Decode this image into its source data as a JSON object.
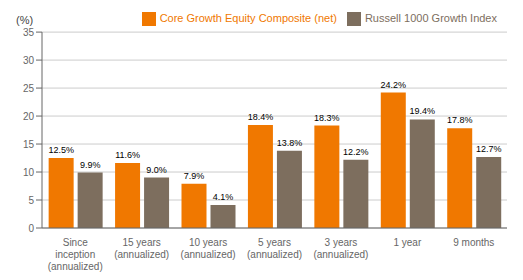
{
  "chart_data": {
    "type": "bar",
    "ylabel": "(%)",
    "categories": [
      "Since\ninception\n(annualized)",
      "15 years\n(annualized)",
      "10 years\n(annualized)",
      "5 years\n(annualized)",
      "3 years\n(annualized)",
      "1 year",
      "9 months"
    ],
    "series": [
      {
        "name": "Core Growth Equity Composite (net)",
        "color": "#F07800",
        "values": [
          12.5,
          11.6,
          7.9,
          18.4,
          18.3,
          24.2,
          17.8
        ],
        "value_labels": [
          "12.5%",
          "11.6%",
          "7.9%",
          "18.4%",
          "18.3%",
          "24.2%",
          "17.8%"
        ]
      },
      {
        "name": "Russell 1000 Growth Index",
        "color": "#7D6E5E",
        "values": [
          9.9,
          9.0,
          4.1,
          13.8,
          12.2,
          19.4,
          12.7
        ],
        "value_labels": [
          "9.9%",
          "9.0%",
          "4.1%",
          "13.8%",
          "12.2%",
          "19.4%",
          "12.7%"
        ]
      }
    ],
    "ylim": [
      0,
      35
    ],
    "yticks": [
      0,
      5,
      10,
      15,
      20,
      25,
      30,
      35
    ],
    "grid": true,
    "legend": "upper right",
    "data_labels": true
  }
}
